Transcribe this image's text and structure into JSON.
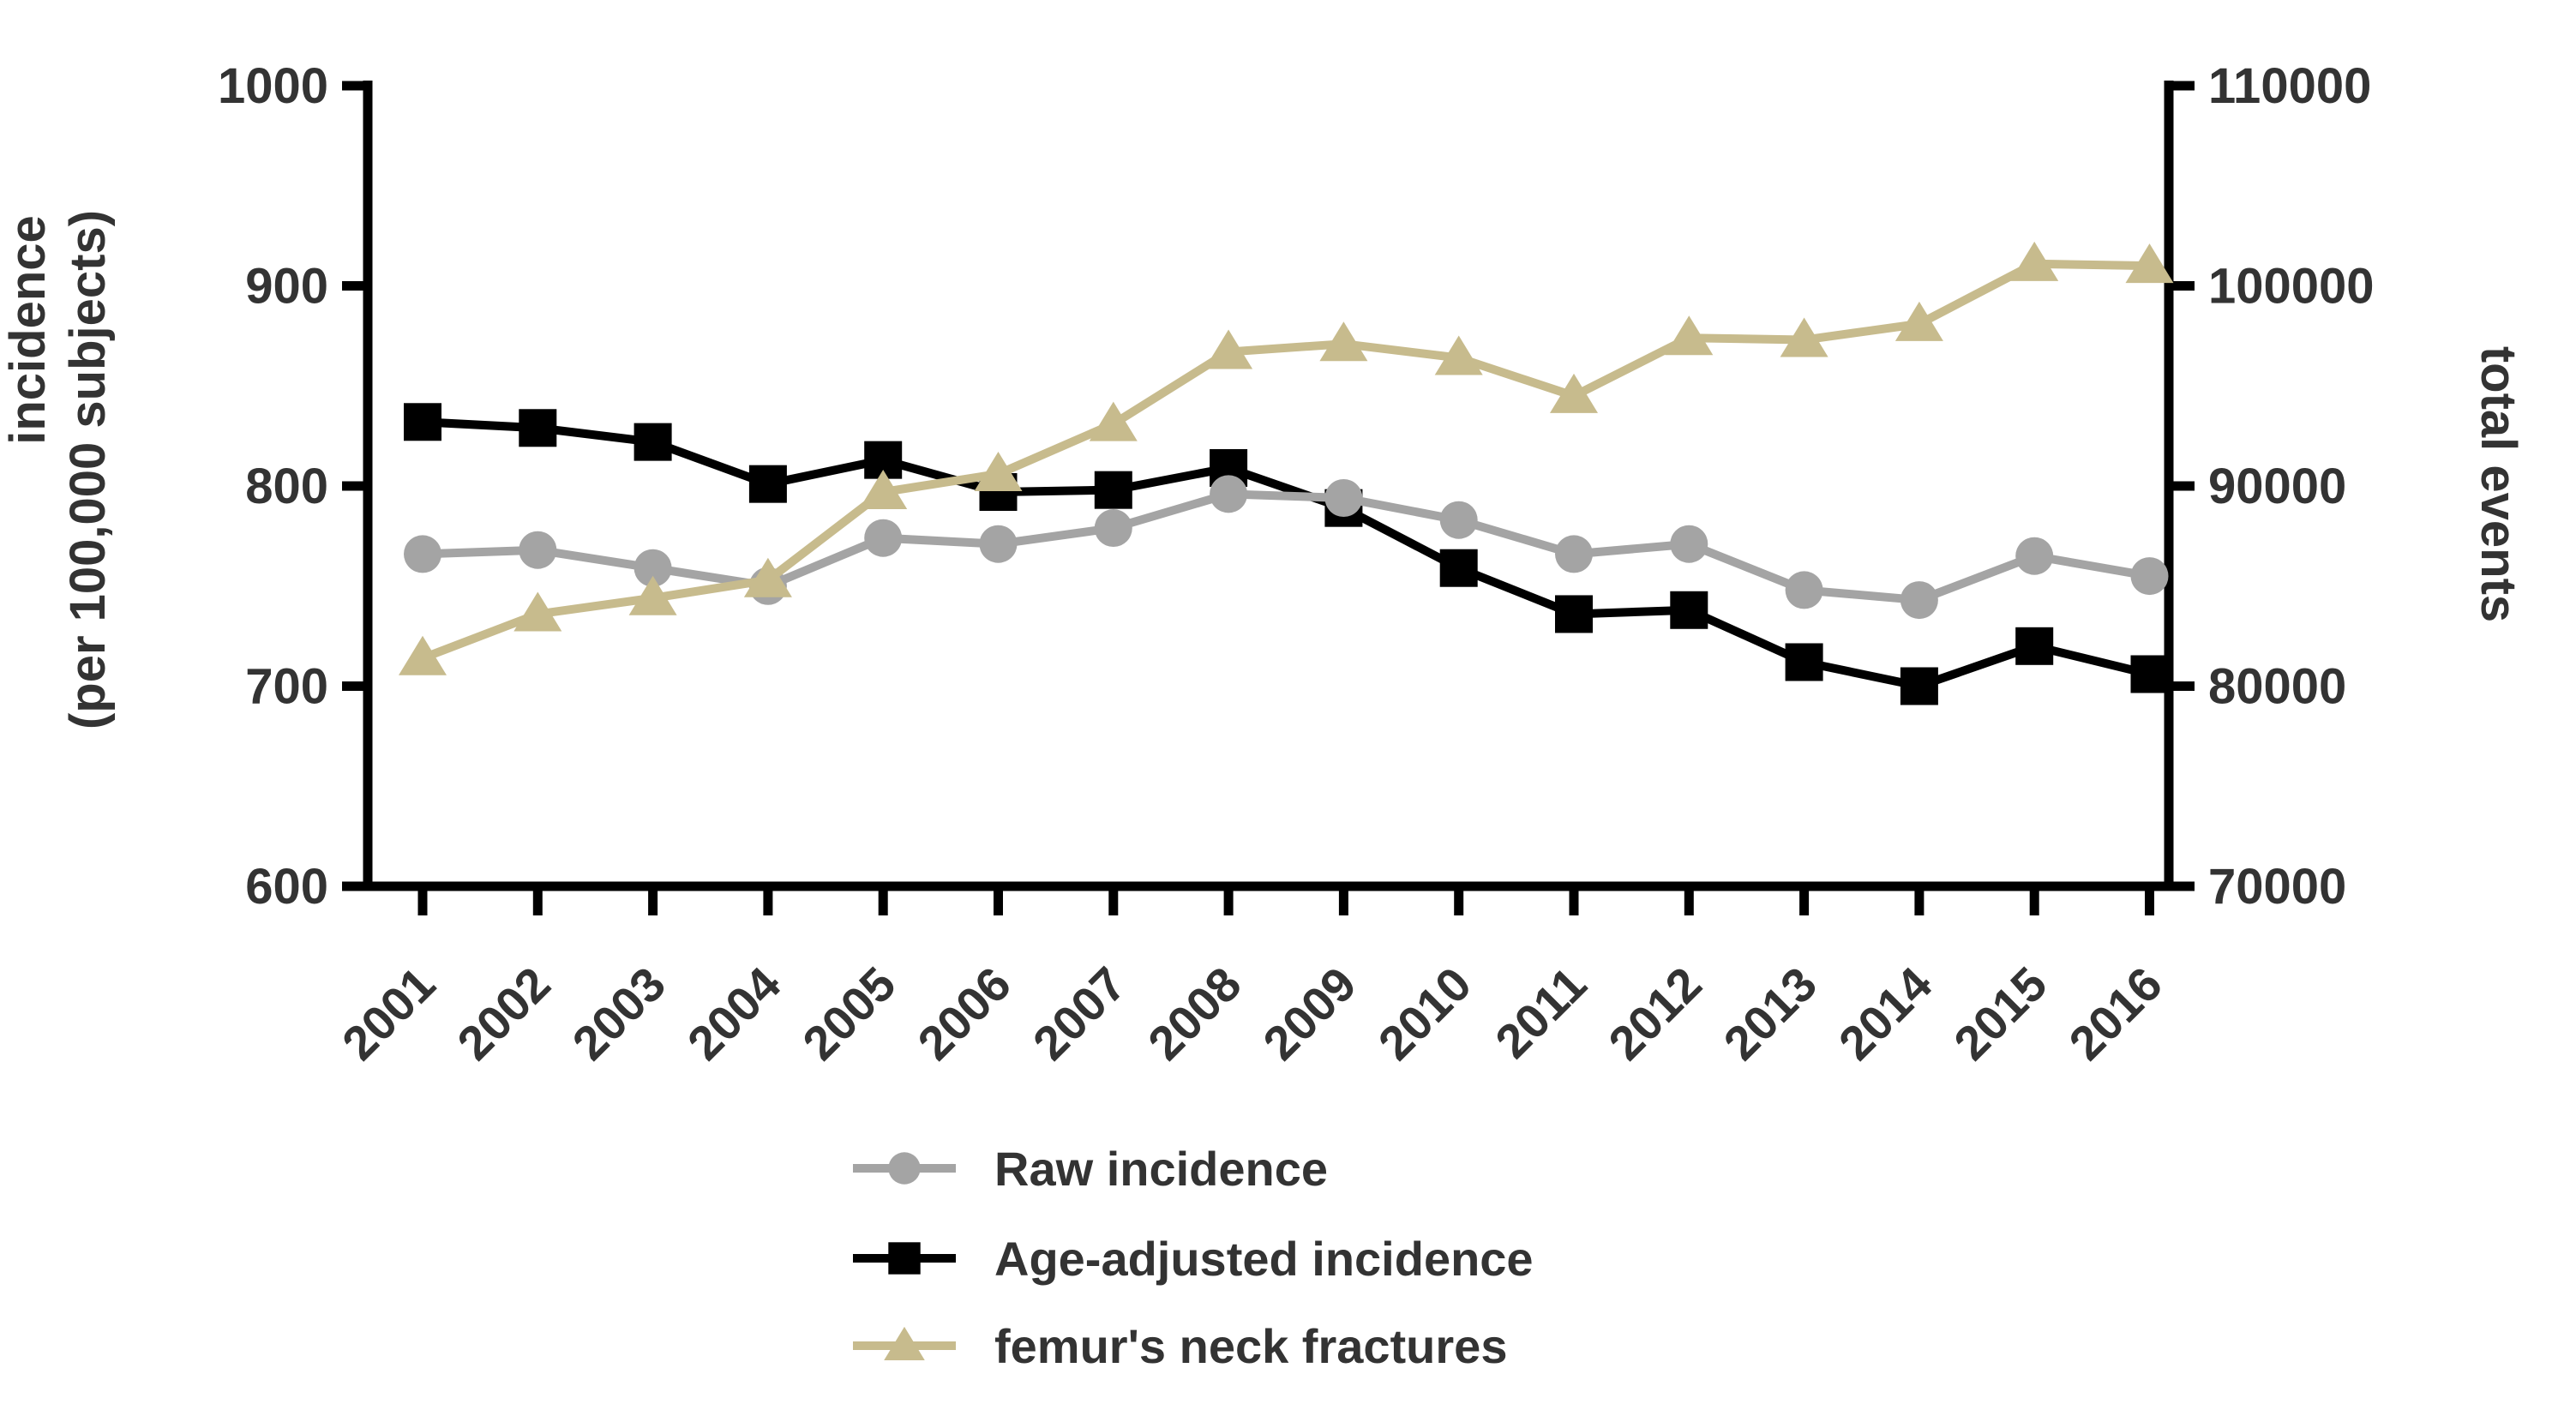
{
  "chart_data": {
    "type": "line",
    "title": "",
    "categories": [
      "2001",
      "2002",
      "2003",
      "2004",
      "2005",
      "2006",
      "2007",
      "2008",
      "2009",
      "2010",
      "2011",
      "2012",
      "2013",
      "2014",
      "2015",
      "2016"
    ],
    "series": [
      {
        "name": "Raw incidence",
        "axis": "left",
        "marker": "circle",
        "color": "#A4A4A4",
        "values": [
          766,
          768,
          759,
          750,
          774,
          771,
          779,
          796,
          794,
          783,
          766,
          771,
          748,
          743,
          765,
          755
        ]
      },
      {
        "name": "Age-adjusted incidence",
        "axis": "left",
        "marker": "square",
        "color": "#000000",
        "values": [
          832,
          829,
          822,
          801,
          813,
          797,
          798,
          809,
          789,
          759,
          736,
          738,
          712,
          700,
          720,
          706
        ]
      },
      {
        "name": "femur's neck fractures",
        "axis": "right",
        "marker": "triangle",
        "color": "#C7BB8D",
        "values": [
          81400,
          83600,
          84400,
          85300,
          89700,
          90600,
          93100,
          96700,
          97100,
          96400,
          94500,
          97400,
          97300,
          98100,
          101100,
          101000
        ]
      }
    ],
    "left_axis": {
      "title_line1": "incidence",
      "title_line2": "(per 100,000 subjects)",
      "min": 600,
      "max": 1000,
      "ticks": [
        1000,
        900,
        800,
        700,
        600
      ]
    },
    "right_axis": {
      "title": "total events",
      "min": 70000,
      "max": 110000,
      "ticks": [
        110000,
        100000,
        90000,
        80000,
        70000
      ]
    },
    "x_axis": {
      "tick_label_rotation_deg": -45
    },
    "legend": {
      "position": "bottom",
      "entries": [
        "Raw incidence",
        "Age-adjusted incidence",
        "femur's neck fractures"
      ]
    },
    "grid": false,
    "axis_color": "#000000",
    "label_color": "#333333",
    "background": "#ffffff"
  }
}
